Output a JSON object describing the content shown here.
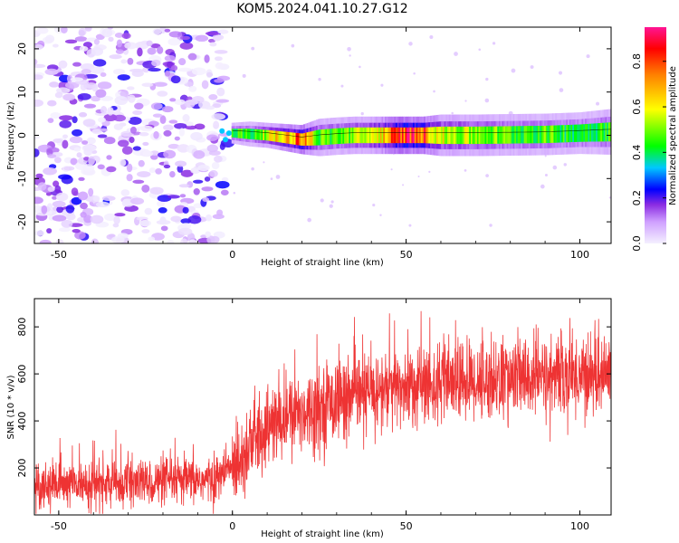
{
  "title": "KOM5.2024.041.10.27.G12",
  "chart_data": [
    {
      "type": "heatmap",
      "xlabel": "Height of straight line (km)",
      "ylabel": "Frequency (Hz)",
      "xlim": [
        -57,
        109
      ],
      "ylim": [
        -25,
        25
      ],
      "xticks": [
        -50,
        0,
        50,
        100
      ],
      "yticks": [
        -20,
        -10,
        0,
        10,
        20
      ],
      "colorbar": {
        "label": "Normalized spectral amplitude",
        "range": [
          0,
          0.95
        ],
        "ticks": [
          0.0,
          0.2,
          0.4,
          0.6,
          0.8
        ],
        "colors": [
          "#f4f0ff",
          "#cfa0ff",
          "#8a2be2",
          "#0000ff",
          "#00c8ff",
          "#00ff00",
          "#ffff00",
          "#ff8000",
          "#ff0000",
          "#ff1493"
        ]
      },
      "noise_region_km": [
        -57,
        -2
      ],
      "signal_band": [
        {
          "x": 0,
          "freq": 0.5,
          "width": 1.0,
          "amp": 0.5
        },
        {
          "x": 5,
          "freq": 0.3,
          "width": 1.2,
          "amp": 0.45
        },
        {
          "x": 10,
          "freq": 0.0,
          "width": 1.2,
          "amp": 0.6
        },
        {
          "x": 15,
          "freq": -0.5,
          "width": 1.3,
          "amp": 0.7
        },
        {
          "x": 20,
          "freq": -1.0,
          "width": 1.4,
          "amp": 0.85
        },
        {
          "x": 25,
          "freq": -0.5,
          "width": 1.8,
          "amp": 0.5
        },
        {
          "x": 30,
          "freq": -0.2,
          "width": 1.8,
          "amp": 0.5
        },
        {
          "x": 35,
          "freq": 0.0,
          "width": 1.8,
          "amp": 0.55
        },
        {
          "x": 40,
          "freq": 0.0,
          "width": 1.8,
          "amp": 0.6
        },
        {
          "x": 45,
          "freq": 0.0,
          "width": 1.8,
          "amp": 0.75
        },
        {
          "x": 50,
          "freq": 0.0,
          "width": 1.8,
          "amp": 0.9
        },
        {
          "x": 55,
          "freq": 0.0,
          "width": 1.8,
          "amp": 0.85
        },
        {
          "x": 60,
          "freq": 0.0,
          "width": 2.0,
          "amp": 0.6
        },
        {
          "x": 70,
          "freq": 0.0,
          "width": 2.0,
          "amp": 0.55
        },
        {
          "x": 80,
          "freq": 0.1,
          "width": 2.0,
          "amp": 0.5
        },
        {
          "x": 90,
          "freq": 0.2,
          "width": 2.0,
          "amp": 0.5
        },
        {
          "x": 100,
          "freq": 0.5,
          "width": 2.0,
          "amp": 0.45
        },
        {
          "x": 109,
          "freq": 0.8,
          "width": 2.2,
          "amp": 0.5
        }
      ]
    },
    {
      "type": "line",
      "xlabel": "Height of straight line (km)",
      "ylabel": "SNR (10 * v/v)",
      "xlim": [
        -57,
        109
      ],
      "ylim": [
        0,
        920
      ],
      "xticks": [
        -50,
        0,
        50,
        100
      ],
      "yticks": [
        200,
        400,
        600,
        800
      ],
      "series": [
        {
          "color": "#ee3333",
          "mean_profile": [
            [
              -57,
              130
            ],
            [
              -40,
              130
            ],
            [
              -20,
              140
            ],
            [
              -5,
              150
            ],
            [
              0,
              210
            ],
            [
              5,
              300
            ],
            [
              10,
              370
            ],
            [
              20,
              440
            ],
            [
              30,
              490
            ],
            [
              40,
              520
            ],
            [
              50,
              545
            ],
            [
              60,
              560
            ],
            [
              70,
              570
            ],
            [
              80,
              580
            ],
            [
              90,
              585
            ],
            [
              100,
              595
            ],
            [
              109,
              600
            ]
          ],
          "noise_spread": 110,
          "sample_step_km": 0.07
        }
      ]
    }
  ]
}
